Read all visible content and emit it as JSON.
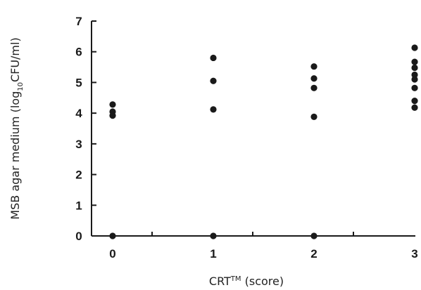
{
  "chart_data": {
    "type": "scatter",
    "xlabel": {
      "main": "CRT",
      "sup": "TM",
      "rest": " (score)"
    },
    "ylabel": {
      "pre": "MSB agar medium (log",
      "sub": "10",
      "post": "CFU/ml)"
    },
    "x_ticks": [
      "0",
      "1",
      "2",
      "3"
    ],
    "y_ticks": [
      "0",
      "1",
      "2",
      "3",
      "4",
      "5",
      "6",
      "7"
    ],
    "xlim": [
      -0.4,
      3.0
    ],
    "ylim": [
      0,
      7
    ],
    "grid": false,
    "legend": "none",
    "marker_color": "#1a1a1a",
    "points": [
      {
        "x": 0,
        "y": 4.28
      },
      {
        "x": 0,
        "y": 4.05
      },
      {
        "x": 0,
        "y": 3.92
      },
      {
        "x": 0,
        "y": 0
      },
      {
        "x": 1,
        "y": 5.8
      },
      {
        "x": 1,
        "y": 5.05
      },
      {
        "x": 1,
        "y": 4.12
      },
      {
        "x": 1,
        "y": 0
      },
      {
        "x": 2,
        "y": 5.52
      },
      {
        "x": 2,
        "y": 5.13
      },
      {
        "x": 2,
        "y": 4.82
      },
      {
        "x": 2,
        "y": 3.88
      },
      {
        "x": 2,
        "y": 0
      },
      {
        "x": 3,
        "y": 6.13
      },
      {
        "x": 3,
        "y": 5.67
      },
      {
        "x": 3,
        "y": 5.48
      },
      {
        "x": 3,
        "y": 5.25
      },
      {
        "x": 3,
        "y": 5.1
      },
      {
        "x": 3,
        "y": 4.82
      },
      {
        "x": 3,
        "y": 4.4
      },
      {
        "x": 3,
        "y": 4.18
      }
    ]
  }
}
